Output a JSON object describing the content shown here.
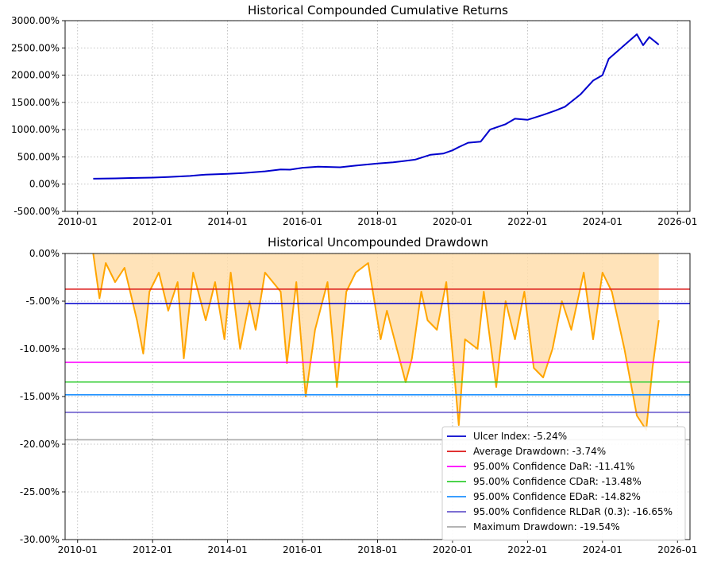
{
  "chart_data": [
    {
      "type": "line",
      "title": "Historical Compounded Cumulative Returns",
      "xlabel": "",
      "ylabel": "",
      "xlim": [
        "2009-09",
        "2026-05"
      ],
      "ylim": [
        -500,
        3000
      ],
      "grid": true,
      "xticks": [
        "2010-01",
        "2012-01",
        "2014-01",
        "2016-01",
        "2018-01",
        "2020-01",
        "2022-01",
        "2024-01",
        "2026-01"
      ],
      "yticks": [
        -500,
        0,
        500,
        1000,
        1500,
        2000,
        2500,
        3000
      ],
      "ytick_labels": [
        "-500.00%",
        "0.00%",
        "500.00%",
        "1000.00%",
        "1500.00%",
        "2000.00%",
        "2500.00%",
        "3000.00%"
      ],
      "series": [
        {
          "color": "#0000cd",
          "points": [
            [
              "2010-06",
              100
            ],
            [
              "2011-01",
              105
            ],
            [
              "2011-06",
              112
            ],
            [
              "2012-01",
              120
            ],
            [
              "2012-06",
              130
            ],
            [
              "2013-01",
              150
            ],
            [
              "2013-06",
              175
            ],
            [
              "2014-01",
              190
            ],
            [
              "2014-06",
              205
            ],
            [
              "2015-01",
              235
            ],
            [
              "2015-06",
              270
            ],
            [
              "2015-09",
              265
            ],
            [
              "2016-01",
              300
            ],
            [
              "2016-06",
              320
            ],
            [
              "2017-01",
              310
            ],
            [
              "2017-06",
              340
            ],
            [
              "2018-01",
              380
            ],
            [
              "2018-06",
              400
            ],
            [
              "2019-01",
              450
            ],
            [
              "2019-06",
              540
            ],
            [
              "2019-10",
              560
            ],
            [
              "2020-01",
              620
            ],
            [
              "2020-03",
              680
            ],
            [
              "2020-06",
              760
            ],
            [
              "2020-10",
              780
            ],
            [
              "2021-01",
              1000
            ],
            [
              "2021-06",
              1100
            ],
            [
              "2021-09",
              1200
            ],
            [
              "2022-01",
              1180
            ],
            [
              "2022-06",
              1270
            ],
            [
              "2022-10",
              1350
            ],
            [
              "2023-01",
              1420
            ],
            [
              "2023-06",
              1650
            ],
            [
              "2023-10",
              1900
            ],
            [
              "2024-01",
              2000
            ],
            [
              "2024-03",
              2300
            ],
            [
              "2024-06",
              2450
            ],
            [
              "2024-09",
              2600
            ],
            [
              "2024-12",
              2750
            ],
            [
              "2025-02",
              2550
            ],
            [
              "2025-04",
              2700
            ],
            [
              "2025-07",
              2560
            ]
          ]
        }
      ]
    },
    {
      "type": "area",
      "title": "Historical Uncompounded Drawdown",
      "xlabel": "",
      "ylabel": "",
      "xlim": [
        "2009-09",
        "2026-05"
      ],
      "ylim": [
        -30,
        0
      ],
      "grid": true,
      "xticks": [
        "2010-01",
        "2012-01",
        "2014-01",
        "2016-01",
        "2018-01",
        "2020-01",
        "2022-01",
        "2024-01",
        "2026-01"
      ],
      "yticks": [
        -30,
        -25,
        -20,
        -15,
        -10,
        -5,
        0
      ],
      "ytick_labels": [
        "-30.00%",
        "-25.00%",
        "-20.00%",
        "-15.00%",
        "-10.00%",
        "-5.00%",
        "0.00%"
      ],
      "legend_position": "lower-right",
      "drawdown": {
        "color": "#ffa500",
        "fill": "#ffdead",
        "points": [
          [
            "2010-06",
            0
          ],
          [
            "2010-08",
            -4.7
          ],
          [
            "2010-10",
            -1
          ],
          [
            "2011-01",
            -3
          ],
          [
            "2011-04",
            -1.5
          ],
          [
            "2011-08",
            -7
          ],
          [
            "2011-10",
            -10.5
          ],
          [
            "2011-12",
            -4
          ],
          [
            "2012-03",
            -2
          ],
          [
            "2012-06",
            -6
          ],
          [
            "2012-09",
            -3
          ],
          [
            "2012-11",
            -11
          ],
          [
            "2013-02",
            -2
          ],
          [
            "2013-06",
            -7
          ],
          [
            "2013-09",
            -3
          ],
          [
            "2013-12",
            -9
          ],
          [
            "2014-02",
            -2
          ],
          [
            "2014-05",
            -10
          ],
          [
            "2014-08",
            -5
          ],
          [
            "2014-10",
            -8
          ],
          [
            "2015-01",
            -2
          ],
          [
            "2015-06",
            -4
          ],
          [
            "2015-08",
            -11.5
          ],
          [
            "2015-11",
            -3
          ],
          [
            "2016-02",
            -15
          ],
          [
            "2016-05",
            -8
          ],
          [
            "2016-09",
            -3
          ],
          [
            "2016-12",
            -14
          ],
          [
            "2017-03",
            -4
          ],
          [
            "2017-06",
            -2
          ],
          [
            "2017-10",
            -1
          ],
          [
            "2018-02",
            -9
          ],
          [
            "2018-04",
            -6
          ],
          [
            "2018-10",
            -13.5
          ],
          [
            "2018-12",
            -11
          ],
          [
            "2019-03",
            -4
          ],
          [
            "2019-05",
            -7
          ],
          [
            "2019-08",
            -8
          ],
          [
            "2019-11",
            -3
          ],
          [
            "2020-03",
            -18
          ],
          [
            "2020-05",
            -9
          ],
          [
            "2020-09",
            -10
          ],
          [
            "2020-11",
            -4
          ],
          [
            "2021-03",
            -14
          ],
          [
            "2021-06",
            -5
          ],
          [
            "2021-09",
            -9
          ],
          [
            "2021-12",
            -4
          ],
          [
            "2022-03",
            -12
          ],
          [
            "2022-06",
            -13
          ],
          [
            "2022-09",
            -10
          ],
          [
            "2022-12",
            -5
          ],
          [
            "2023-03",
            -8
          ],
          [
            "2023-07",
            -2
          ],
          [
            "2023-10",
            -9
          ],
          [
            "2024-01",
            -2
          ],
          [
            "2024-04",
            -4
          ],
          [
            "2024-08",
            -10
          ],
          [
            "2024-12",
            -17
          ],
          [
            "2025-03",
            -18.5
          ],
          [
            "2025-05",
            -12
          ],
          [
            "2025-07",
            -7
          ]
        ]
      },
      "lines": [
        {
          "name": "Ulcer Index: -5.24%",
          "value": -5.24,
          "color": "#0000cd"
        },
        {
          "name": "Average Drawdown: -3.74%",
          "value": -3.74,
          "color": "#dc1414"
        },
        {
          "name": "95.00% Confidence DaR: -11.41%",
          "value": -11.41,
          "color": "#ff00ff"
        },
        {
          "name": "95.00% Confidence CDaR: -13.48%",
          "value": -13.48,
          "color": "#32cd32"
        },
        {
          "name": "95.00% Confidence EDaR: -14.82%",
          "value": -14.82,
          "color": "#1e90ff"
        },
        {
          "name": "95.00% Confidence RLDaR (0.3): -16.65%",
          "value": -16.65,
          "color": "#6a5acd"
        },
        {
          "name": "Maximum Drawdown: -19.54%",
          "value": -19.54,
          "color": "#a9a9a9"
        }
      ]
    }
  ]
}
